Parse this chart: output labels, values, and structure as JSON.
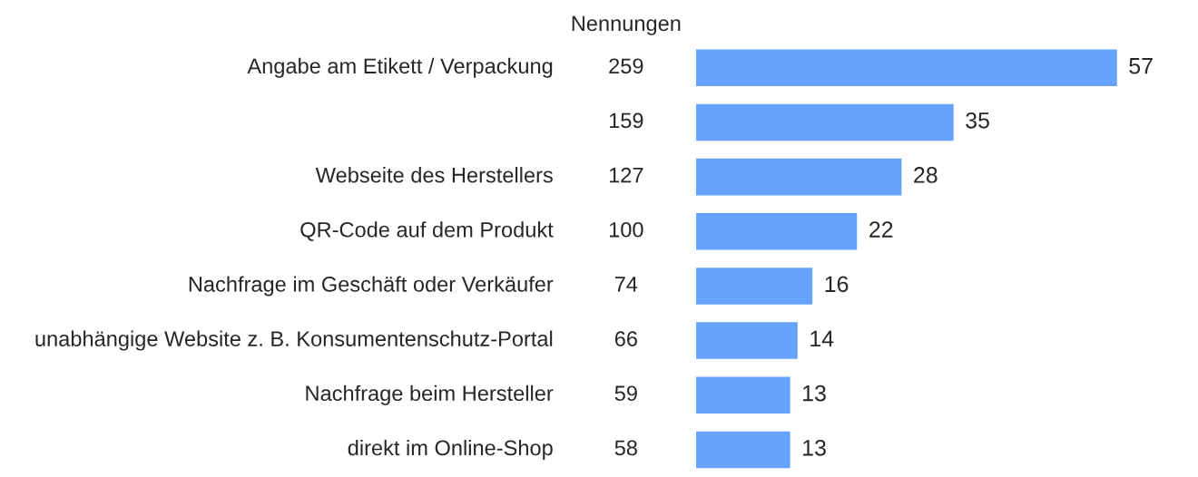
{
  "chart_data": {
    "type": "bar",
    "orientation": "horizontal",
    "categories": [
      "Angabe am Etikett / Verpackung",
      null,
      "Webseite des Herstellers",
      "QR-Code auf dem Produkt",
      "Nachfrage im Geschäft oder Verkäufer",
      "unabhängige Website z. B. Konsumentenschutz-Portal",
      "Nachfrage beim Hersteller",
      "direkt im Online-Shop"
    ],
    "values": [
      57,
      35,
      28,
      22,
      16,
      14,
      13,
      13
    ],
    "color": "#66a3ff",
    "data_labels": true,
    "annotations": [
      "Nennungen",
      "259",
      "159",
      "127",
      "100",
      "74",
      "66",
      "59",
      "58"
    ]
  }
}
